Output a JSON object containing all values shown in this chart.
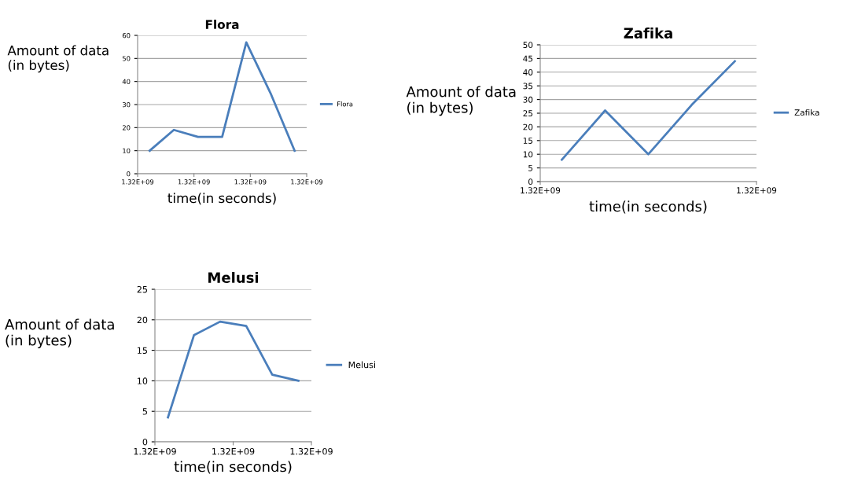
{
  "chart_data": [
    {
      "type": "line",
      "title": "Flora",
      "xlabel": "time(in seconds)",
      "ylabel": "Amount of data\n(in bytes)",
      "categories": [
        null,
        null,
        null,
        null,
        null,
        null,
        null
      ],
      "series": [
        {
          "name": "Flora",
          "color": "#4a7ebb",
          "values": [
            10,
            19,
            16,
            16,
            57,
            35,
            10
          ]
        }
      ],
      "annotations": [
        "1.32E+09",
        "1.32E+09",
        "1.32E+09",
        "1.32E+09"
      ],
      "ylim": [
        0,
        60
      ],
      "yticks": [
        0,
        10,
        20,
        30,
        40,
        50,
        60
      ],
      "grid": "y",
      "legend": "right",
      "marker": "none",
      "line_style": "solid"
    },
    {
      "type": "line",
      "title": "Zafika",
      "xlabel": "time(in seconds)",
      "ylabel": "Amount of data\n(in bytes)",
      "categories": [
        null,
        null,
        null,
        null,
        null
      ],
      "series": [
        {
          "name": "Zafika",
          "color": "#4a7ebb",
          "values": [
            8,
            26,
            10,
            28,
            44
          ]
        }
      ],
      "annotations": [
        "1.32E+09",
        "1.32E+09"
      ],
      "ylim": [
        0,
        50
      ],
      "yticks": [
        0,
        5,
        10,
        15,
        20,
        25,
        30,
        35,
        40,
        45,
        50
      ],
      "grid": "y",
      "legend": "right",
      "marker": "none",
      "line_style": "solid"
    },
    {
      "type": "line",
      "title": "Melusi",
      "xlabel": "time(in seconds)",
      "ylabel": "Amount of data\n(in bytes)",
      "categories": [
        null,
        null,
        null,
        null,
        null,
        null
      ],
      "series": [
        {
          "name": "Melusi",
          "color": "#4a7ebb",
          "values": [
            4,
            17.5,
            19.7,
            19,
            11,
            10
          ]
        }
      ],
      "annotations": [
        "1.32E+09",
        "1.32E+09",
        "1.32E+09"
      ],
      "ylim": [
        0,
        25
      ],
      "yticks": [
        0,
        5,
        10,
        15,
        20,
        25
      ],
      "grid": "y",
      "legend": "right",
      "marker": "none",
      "line_style": "solid"
    }
  ]
}
